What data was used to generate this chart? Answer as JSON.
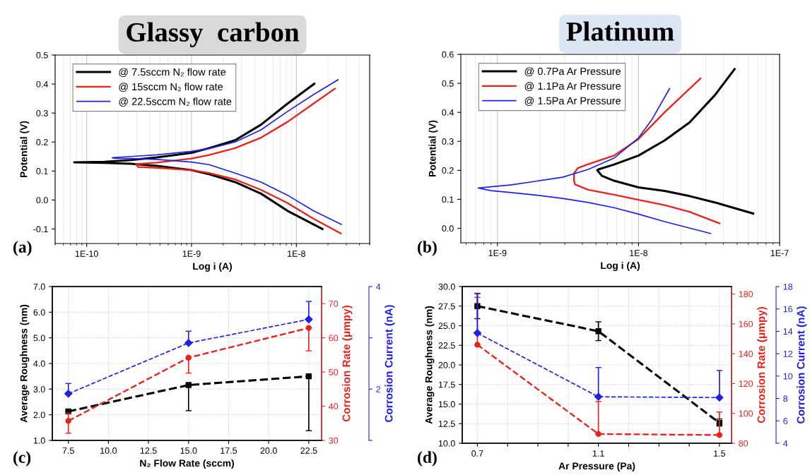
{
  "chart_data": [
    {
      "type": "line",
      "title": "Glassy  carbon",
      "xlabel": "Log i (A)",
      "ylabel": "Potential (V)",
      "log": "x",
      "grid": "x",
      "legend": "top left",
      "annotations": [
        "(a)"
      ],
      "xlim": [
        5e-11,
        5e-08
      ],
      "xticks": [
        {
          "value": 1e-10,
          "label": "1E-10"
        },
        {
          "value": 1e-09,
          "label": "1E-9"
        },
        {
          "value": 1e-08,
          "label": "1E-8"
        }
      ],
      "ylim": [
        -0.15,
        0.5
      ],
      "yticks": [
        -0.1,
        {
          "value": 0,
          "label": "0.0"
        },
        0.1,
        0.2,
        0.3,
        0.4,
        0.5
      ],
      "series": [
        {
          "name": "@ 7.5sccm N₂ flow rate",
          "color": "#000000",
          "x": [
            1.48e-08,
            8.2e-09,
            4.6e-09,
            2.6e-09,
            1.47e-09,
            1e-09,
            4.67e-10,
            2.63e-10,
            1.48e-10,
            7.6e-11,
            1.48e-10,
            2.63e-10,
            4.67e-10,
            1e-09,
            1.47e-09,
            2.6e-09,
            4.6e-09,
            8.2e-09,
            1.77e-08
          ],
          "values": [
            0.401,
            0.332,
            0.26,
            0.206,
            0.179,
            0.163,
            0.147,
            0.138,
            0.132,
            0.13,
            0.128,
            0.125,
            0.118,
            0.103,
            0.089,
            0.062,
            0.022,
            -0.037,
            -0.1
          ]
        },
        {
          "name": "@ 15sccm N₂ flow rate",
          "color": "#e8221c",
          "x": [
            2.33e-08,
            1.45e-08,
            8.2e-09,
            4.6e-09,
            2.6e-09,
            1.47e-09,
            1e-09,
            4.67e-10,
            2.95e-10,
            3.1e-10,
            4.67e-10,
            1e-09,
            1.47e-09,
            2.6e-09,
            4.6e-09,
            8.2e-09,
            1.45e-08,
            2.65e-08
          ],
          "values": [
            0.384,
            0.332,
            0.269,
            0.215,
            0.179,
            0.155,
            0.143,
            0.129,
            0.124,
            0.114,
            0.111,
            0.103,
            0.093,
            0.071,
            0.035,
            -0.01,
            -0.064,
            -0.115
          ]
        },
        {
          "name": "@ 22.5sccm N₂ flow rate",
          "color": "#2020e8",
          "x": [
            2.5e-08,
            1.45e-08,
            8.2e-09,
            4.6e-09,
            2.6e-09,
            1.47e-09,
            1e-09,
            4.67e-10,
            2.63e-10,
            1.76e-10,
            1.8e-10,
            2.63e-10,
            4.67e-10,
            1e-09,
            1.47e-09,
            2.6e-09,
            4.6e-09,
            8.2e-09,
            1.45e-08,
            2.68e-08
          ],
          "values": [
            0.415,
            0.363,
            0.305,
            0.242,
            0.2,
            0.177,
            0.168,
            0.156,
            0.15,
            0.146,
            0.144,
            0.143,
            0.14,
            0.131,
            0.122,
            0.093,
            0.062,
            0.017,
            -0.037,
            -0.084
          ]
        }
      ]
    },
    {
      "type": "line",
      "title": "Platinum",
      "xlabel": "Log i (A)",
      "ylabel": "Potential (V)",
      "log": "x",
      "grid": "x",
      "legend": "top left",
      "annotations": [
        "(b)"
      ],
      "xlim": [
        5.5e-10,
        1e-07
      ],
      "xticks": [
        {
          "value": 1e-09,
          "label": "1E-9"
        },
        {
          "value": 1e-08,
          "label": "1E-8"
        },
        {
          "value": 1e-07,
          "label": "1E-7"
        }
      ],
      "ylim": [
        -0.05,
        0.6
      ],
      "yticks": [
        {
          "value": 0,
          "label": "0.0"
        },
        0.1,
        0.2,
        0.3,
        0.4,
        0.5,
        0.6
      ],
      "series": [
        {
          "name": "@ 0.7Pa Ar Pressure",
          "color": "#000000",
          "x": [
            4.8e-08,
            3.5e-08,
            2.3e-08,
            1.53e-08,
            1e-08,
            6.7e-09,
            5.2e-09,
            5.1e-09,
            5.5e-09,
            6.7e-09,
            1e-08,
            1.53e-08,
            2.3e-08,
            3.5e-08,
            6.5e-08
          ],
          "values": [
            0.549,
            0.461,
            0.365,
            0.303,
            0.251,
            0.22,
            0.203,
            0.2,
            0.181,
            0.164,
            0.141,
            0.129,
            0.111,
            0.089,
            0.051
          ]
        },
        {
          "name": "@ 1.1Pa Ar Pressure",
          "color": "#e8221c",
          "x": [
            2.75e-08,
            1.53e-08,
            1e-08,
            6.7e-09,
            4.4e-09,
            3.72e-09,
            3.49e-09,
            3.49e-09,
            3.55e-09,
            4.4e-09,
            6.7e-09,
            1e-08,
            1.53e-08,
            2.3e-08,
            3.75e-08
          ],
          "values": [
            0.517,
            0.4,
            0.308,
            0.251,
            0.221,
            0.208,
            0.19,
            0.164,
            0.151,
            0.133,
            0.116,
            0.098,
            0.08,
            0.057,
            0.017
          ]
        },
        {
          "name": "@ 1.5Pa Ar Pressure",
          "color": "#2020e8",
          "x": [
            1.66e-08,
            1.24e-08,
            1e-08,
            6.7e-09,
            4.4e-09,
            2.89e-09,
            1.91e-09,
            1.26e-09,
            7.3e-10,
            9e-10,
            1.26e-09,
            1.91e-09,
            2.89e-09,
            4.4e-09,
            6.7e-09,
            1e-08,
            1.53e-08,
            3.24e-08
          ],
          "values": [
            0.482,
            0.374,
            0.312,
            0.242,
            0.203,
            0.176,
            0.163,
            0.15,
            0.139,
            0.13,
            0.123,
            0.114,
            0.103,
            0.089,
            0.071,
            0.049,
            0.023,
            -0.018
          ]
        }
      ]
    },
    {
      "type": "line",
      "xlabel": "N₂ Flow Rate (sccm)",
      "ylabel": "Average Roughness (nm)",
      "y2label": "Corrosion Rate (μmpy)",
      "y3label": "Corrosion Current (nA)",
      "grid": true,
      "annotations": [
        "(c)"
      ],
      "x": [
        7.5,
        15,
        22.5
      ],
      "xlim": [
        6.5,
        23.3
      ],
      "xticks": [
        7.5,
        {
          "value": 10,
          "label": "10.0"
        },
        12.5,
        {
          "value": 15,
          "label": "15.0"
        },
        17.5,
        {
          "value": 20,
          "label": "20.0"
        },
        22.5
      ],
      "ylim": [
        1,
        7
      ],
      "yticks": [
        {
          "value": 1,
          "label": "1.0"
        },
        {
          "value": 2,
          "label": "2.0"
        },
        {
          "value": 3,
          "label": "3.0"
        },
        {
          "value": 4,
          "label": "4.0"
        },
        {
          "value": 5,
          "label": "5.0"
        },
        {
          "value": 6,
          "label": "6.0"
        },
        {
          "value": 7,
          "label": "7.0"
        }
      ],
      "y2lim": [
        30,
        75
      ],
      "y2ticks": [
        30,
        40,
        50,
        60,
        70
      ],
      "y3lim": [
        1,
        4
      ],
      "y3ticks": [
        {
          "value": 1,
          "label": null
        },
        2,
        {
          "value": 3,
          "label": null
        },
        4
      ],
      "series": [
        {
          "color": "#000000",
          "axis": "y",
          "marker": "square",
          "line_style": "dashed",
          "values": [
            2.13,
            3.16,
            3.5
          ],
          "errors": [
            null,
            [
              2.16,
              3.16
            ],
            [
              1.38,
              3.5
            ]
          ]
        },
        {
          "color": "#e8221c",
          "axis": "y2",
          "marker": "circle",
          "line_style": "dashed",
          "values": [
            35.7,
            54.2,
            62.9
          ],
          "errors": [
            [
              32.1,
              38.0
            ],
            [
              49.7,
              54.2
            ],
            [
              56.2,
              62.9
            ]
          ]
        },
        {
          "color": "#2020e8",
          "axis": "y3",
          "marker": "diamond",
          "line_style": "dashed",
          "values": [
            1.91,
            2.9,
            3.36
          ],
          "errors": [
            [
              1.91,
              2.11
            ],
            [
              2.9,
              3.13
            ],
            [
              3.36,
              3.71
            ]
          ]
        }
      ]
    },
    {
      "type": "line",
      "xlabel": "Ar Pressure (Pa)",
      "ylabel": "Average Roughness (nm)",
      "y2label": "Corrosion Rate (μmpy)",
      "y3label": "Corrosion Current (nA)",
      "grid": true,
      "annotations": [
        "(d)"
      ],
      "x": [
        0.7,
        1.1,
        1.5
      ],
      "xlim": [
        0.65,
        1.54
      ],
      "xticks": [
        0.7,
        {
          "value": 0.8,
          "label": null
        },
        {
          "value": 0.9,
          "label": null
        },
        {
          "value": 1.0,
          "label": null
        },
        1.1,
        {
          "value": 1.2,
          "label": null
        },
        {
          "value": 1.3,
          "label": null
        },
        {
          "value": 1.4,
          "label": null
        },
        1.5
      ],
      "ylim": [
        10,
        30
      ],
      "yticks": [
        {
          "value": 10,
          "label": "10.0"
        },
        12.5,
        {
          "value": 15,
          "label": "15.0"
        },
        17.5,
        {
          "value": 20,
          "label": "20.0"
        },
        22.5,
        {
          "value": 25,
          "label": "25.0"
        },
        27.5,
        {
          "value": 30,
          "label": "30.0"
        }
      ],
      "y2lim": [
        80,
        185
      ],
      "y2ticks": [
        80,
        100,
        120,
        140,
        160,
        180
      ],
      "y3lim": [
        4,
        18
      ],
      "y3ticks": [
        4,
        6,
        8,
        10,
        12,
        14,
        16,
        18
      ],
      "series": [
        {
          "color": "#000000",
          "axis": "y",
          "marker": "square",
          "line_style": "dashed",
          "values": [
            27.5,
            24.3,
            12.6
          ],
          "errors": [
            [
              25.9,
              29.1
            ],
            [
              23.1,
              25.5
            ],
            [
              12.2,
              13.1
            ]
          ]
        },
        {
          "color": "#e8221c",
          "axis": "y2",
          "marker": "circle",
          "line_style": "dashed",
          "values": [
            146,
            86.2,
            85.5
          ],
          "errors": [
            [
              146,
              177.8
            ],
            [
              86.2,
              108
            ],
            [
              85.5,
              100.9
            ]
          ]
        },
        {
          "color": "#2020e8",
          "axis": "y3",
          "marker": "diamond",
          "line_style": "dashed",
          "values": [
            13.85,
            8.15,
            8.08
          ],
          "errors": [
            [
              13.85,
              17.4
            ],
            [
              8.15,
              10.77
            ],
            [
              8.08,
              10.5
            ]
          ]
        }
      ]
    }
  ]
}
